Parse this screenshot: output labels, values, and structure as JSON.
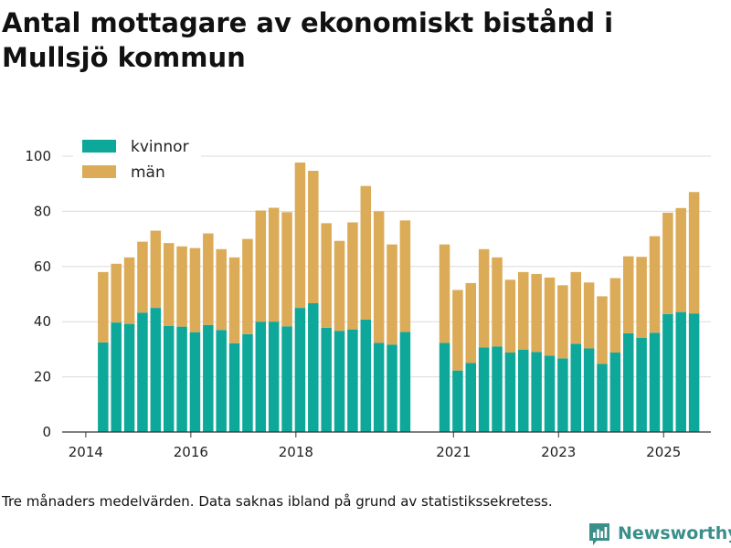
{
  "title": "Antal mottagare av ekonomiskt bistånd i Mullsjö kommun",
  "caption": "Tre månaders medelvärden. Data saknas ibland på grund av statistikssekretess.",
  "brand": {
    "name": "Newsworthy",
    "icon": "newsworthy-logo-icon",
    "color": "#3a8f8a"
  },
  "chart_data": {
    "type": "bar",
    "stacked": true,
    "title": "Antal mottagare av ekonomiskt bistånd i Mullsjö kommun",
    "xlabel": "",
    "ylabel": "",
    "ylim": [
      0,
      100
    ],
    "yticks": [
      0,
      20,
      40,
      60,
      80,
      100
    ],
    "xlim": [
      2013.55,
      2025.9
    ],
    "xticks": [
      {
        "label": "2014",
        "value": 2014
      },
      {
        "label": "2016",
        "value": 2016
      },
      {
        "label": "2018",
        "value": 2018
      },
      {
        "label": "2021",
        "value": 2021
      },
      {
        "label": "2023",
        "value": 2023
      },
      {
        "label": "2025",
        "value": 2025
      }
    ],
    "grid": true,
    "legend_position": "top-left",
    "x": [
      2014.33,
      2014.58,
      2014.83,
      2015.08,
      2015.33,
      2015.58,
      2015.83,
      2016.08,
      2016.33,
      2016.58,
      2016.83,
      2017.08,
      2017.33,
      2017.58,
      2017.83,
      2018.08,
      2018.33,
      2018.58,
      2018.83,
      2019.08,
      2019.33,
      2019.58,
      2019.83,
      2020.08,
      2020.83,
      2021.08,
      2021.33,
      2021.58,
      2021.83,
      2022.08,
      2022.33,
      2022.58,
      2022.83,
      2023.08,
      2023.33,
      2023.58,
      2023.83,
      2024.08,
      2024.33,
      2024.58,
      2024.83,
      2025.08,
      2025.33,
      2025.58
    ],
    "series": [
      {
        "name": "kvinnor",
        "color": "#0ea89a",
        "values": [
          32.5,
          39.7,
          39.2,
          43.3,
          45.0,
          38.5,
          38.2,
          36.2,
          38.8,
          37.0,
          32.2,
          35.5,
          40.0,
          40.0,
          38.3,
          45.0,
          46.7,
          37.8,
          36.7,
          37.2,
          40.8,
          32.3,
          31.7,
          36.3,
          32.3,
          22.3,
          25.0,
          30.7,
          31.0,
          28.8,
          29.8,
          29.0,
          27.7,
          26.7,
          32.0,
          30.3,
          24.7,
          28.8,
          35.8,
          34.2,
          36.0,
          42.8,
          43.5,
          43.0
        ]
      },
      {
        "name": "män",
        "color": "#dbab57",
        "values": [
          25.5,
          21.3,
          24.1,
          25.7,
          28.0,
          30.0,
          29.1,
          30.5,
          33.2,
          29.3,
          31.1,
          34.5,
          40.3,
          41.3,
          41.4,
          52.7,
          48.0,
          37.9,
          32.6,
          38.8,
          48.4,
          47.7,
          36.3,
          40.4,
          35.7,
          29.2,
          29.0,
          35.6,
          32.3,
          26.4,
          28.2,
          28.3,
          28.3,
          26.5,
          26.0,
          23.9,
          24.5,
          27.0,
          27.9,
          29.3,
          35.0,
          36.7,
          37.7,
          44.0
        ]
      }
    ]
  }
}
